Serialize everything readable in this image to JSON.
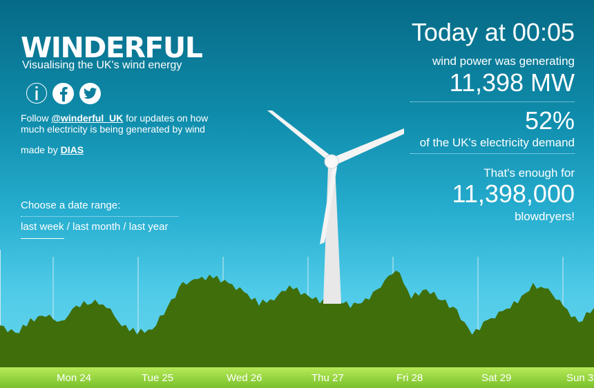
{
  "brand": {
    "title": "WINDERFUL",
    "subtitle": "Visualising the UK's wind energy"
  },
  "social": {
    "info_icon": "info-icon",
    "facebook_icon": "facebook-icon",
    "twitter_icon": "twitter-icon"
  },
  "follow": {
    "prefix": "Follow ",
    "handle": "@winderful_UK",
    "suffix": " for updates on how much electricity is being generated by wind"
  },
  "credit": {
    "prefix": "made by ",
    "link": "DIAS"
  },
  "range": {
    "label": "Choose a date range:",
    "options": [
      "last week",
      "last month",
      "last year"
    ],
    "separator": " / ",
    "selected": "last week"
  },
  "stats": {
    "time_heading": "Today at 00:05",
    "generating_label": "wind power was generating",
    "generating_value": "11,398 MW",
    "demand_percent": "52%",
    "demand_label": "of the UK's electricity demand",
    "enough_label": "That's enough for",
    "blowdryer_count": "11,398,000",
    "blowdryer_label": "blowdryers!"
  },
  "chart": {
    "days": [
      "Mon 24",
      "Tue 25",
      "Wed 26",
      "Thu 27",
      "Fri 28",
      "Sat 29",
      "Sun 3"
    ],
    "colors": {
      "area": "#3f6e0a",
      "area_top": "#4d8012",
      "ground": "#8ccf3a",
      "gridline": "#cfe9f0",
      "turbine": "#f2f2f2"
    },
    "profile": [
      0.38,
      0.3,
      0.42,
      0.48,
      0.4,
      0.55,
      0.6,
      0.56,
      0.38,
      0.32,
      0.34,
      0.55,
      0.75,
      0.8,
      0.82,
      0.76,
      0.68,
      0.58,
      0.62,
      0.74,
      0.66,
      0.6,
      0.62,
      0.56,
      0.6,
      0.74,
      0.9,
      0.64,
      0.7,
      0.62,
      0.5,
      0.3,
      0.42,
      0.5,
      0.6,
      0.74,
      0.7,
      0.55,
      0.4,
      0.55
    ]
  }
}
